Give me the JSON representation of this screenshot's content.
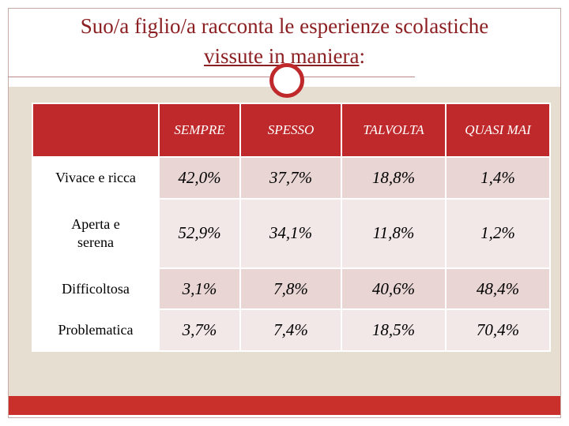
{
  "title": {
    "line1": "Suo/a  figlio/a  racconta le esperienze scolastiche",
    "line2_main": "vissute in maniera",
    "line2_colon": ":"
  },
  "colors": {
    "accent": "#c0292b",
    "cell": "#e8d5d4",
    "panel": "#e6dfd1"
  },
  "table": {
    "headers": [
      "",
      "SEMPRE",
      "SPESSO",
      "TALVOLTA",
      "QUASI MAI"
    ],
    "rows": [
      {
        "label": "Vivace e ricca",
        "values": [
          "42,0%",
          "37,7%",
          "18,8%",
          "1,4%"
        ]
      },
      {
        "label": "Aperta e serena",
        "values": [
          "52,9%",
          "34,1%",
          "11,8%",
          "1,2%"
        ]
      },
      {
        "label": "Difficoltosa",
        "values": [
          "3,1%",
          "7,8%",
          "40,6%",
          "48,4%"
        ]
      },
      {
        "label": "Problematica",
        "values": [
          "3,7%",
          "7,4%",
          "18,5%",
          "70,4%"
        ]
      }
    ]
  }
}
